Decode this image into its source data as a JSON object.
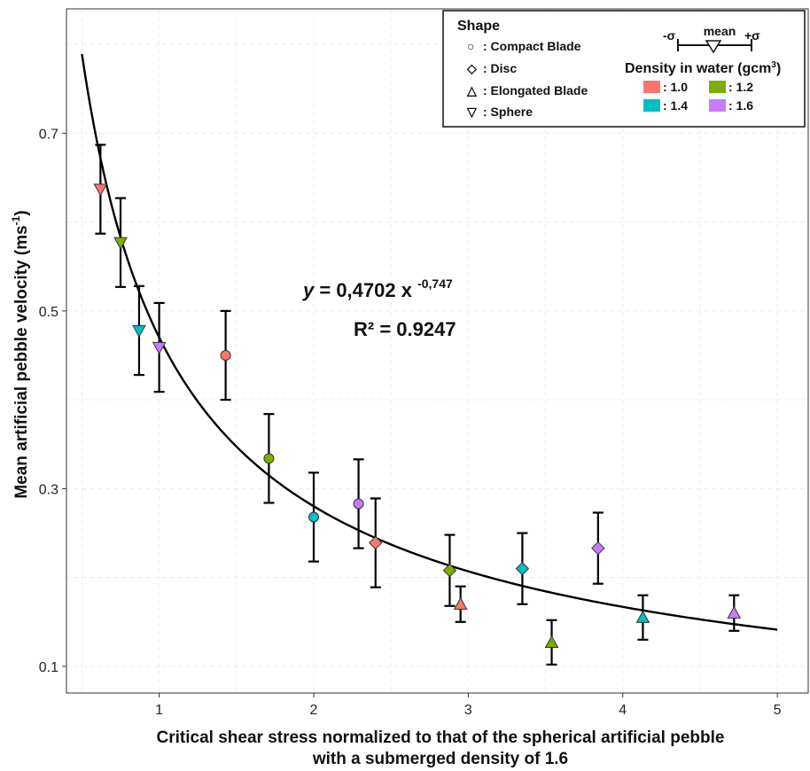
{
  "chart_data": {
    "type": "scatter",
    "xlabel_line1": "Critical shear stress normalized to that of the spherical artificial pebble",
    "xlabel_line2": "with a submerged density of 1.6",
    "ylabel_main": "Mean artificial pebble velocity (ms",
    "ylabel_sup": "-1",
    "ylabel_close": ")",
    "xlim": [
      0.4,
      5.2
    ],
    "ylim": [
      0.07,
      0.84
    ],
    "x_ticks": [
      1,
      2,
      3,
      4,
      5
    ],
    "y_ticks": [
      0.1,
      0.3,
      0.5,
      0.7
    ],
    "x_tick_labels": [
      "1",
      "2",
      "3",
      "4",
      "5"
    ],
    "y_tick_labels": [
      "0.1",
      "0.3",
      "0.5",
      "0.7"
    ],
    "grid": true,
    "fit": {
      "a": 0.4702,
      "b": -0.747,
      "x_range": [
        0.5,
        5.0
      ],
      "equation_y": "y",
      "equation_rest": " = 0,4702 x ",
      "equation_exp": "-0,747",
      "r2": "R² = 0.9247"
    },
    "points": [
      {
        "x": 0.62,
        "y": 0.637,
        "err": 0.05,
        "shape": "Sphere",
        "density": "1.0"
      },
      {
        "x": 0.75,
        "y": 0.577,
        "err": 0.05,
        "shape": "Sphere",
        "density": "1.2"
      },
      {
        "x": 0.87,
        "y": 0.478,
        "err": 0.05,
        "shape": "Sphere",
        "density": "1.4"
      },
      {
        "x": 1.0,
        "y": 0.459,
        "err": 0.05,
        "shape": "Sphere",
        "density": "1.6"
      },
      {
        "x": 1.43,
        "y": 0.45,
        "err": 0.05,
        "shape": "Compact Blade",
        "density": "1.0"
      },
      {
        "x": 1.71,
        "y": 0.334,
        "err": 0.05,
        "shape": "Compact Blade",
        "density": "1.2"
      },
      {
        "x": 2.0,
        "y": 0.268,
        "err": 0.05,
        "shape": "Compact Blade",
        "density": "1.4"
      },
      {
        "x": 2.29,
        "y": 0.283,
        "err": 0.05,
        "shape": "Compact Blade",
        "density": "1.6"
      },
      {
        "x": 2.4,
        "y": 0.239,
        "err": 0.05,
        "shape": "Disc",
        "density": "1.0"
      },
      {
        "x": 2.88,
        "y": 0.208,
        "err": 0.04,
        "shape": "Disc",
        "density": "1.2"
      },
      {
        "x": 2.95,
        "y": 0.17,
        "err": 0.02,
        "shape": "Elongated Blade",
        "density": "1.0"
      },
      {
        "x": 3.35,
        "y": 0.21,
        "err": 0.04,
        "shape": "Disc",
        "density": "1.4"
      },
      {
        "x": 3.54,
        "y": 0.127,
        "err": 0.025,
        "shape": "Elongated Blade",
        "density": "1.2"
      },
      {
        "x": 3.84,
        "y": 0.233,
        "err": 0.04,
        "shape": "Disc",
        "density": "1.6"
      },
      {
        "x": 4.13,
        "y": 0.155,
        "err": 0.025,
        "shape": "Elongated Blade",
        "density": "1.4"
      },
      {
        "x": 4.72,
        "y": 0.16,
        "err": 0.02,
        "shape": "Elongated Blade",
        "density": "1.6"
      }
    ],
    "density_colors": {
      "1.0": "#f8766d",
      "1.2": "#7cae00",
      "1.4": "#00bfc4",
      "1.6": "#c77cff"
    }
  },
  "legend": {
    "shape_title": "Shape",
    "shapes": [
      {
        "symbol": "○",
        "label": ": Compact Blade"
      },
      {
        "symbol": "◇",
        "label": ": Disc"
      },
      {
        "symbol": "△",
        "label": ": Elongated Blade"
      },
      {
        "symbol": "▽",
        "label": ": Sphere"
      }
    ],
    "sigma_minus": "-σ",
    "mean": "mean",
    "sigma_plus": "+σ",
    "density_title": "Density in water (gcm",
    "density_title_sup": "3",
    "density_title_close": ")",
    "densities": [
      {
        "label": ": 1.0",
        "color": "#f8766d"
      },
      {
        "label": ": 1.2",
        "color": "#7cae00"
      },
      {
        "label": ": 1.4",
        "color": "#00bfc4"
      },
      {
        "label": ": 1.6",
        "color": "#c77cff"
      }
    ]
  }
}
